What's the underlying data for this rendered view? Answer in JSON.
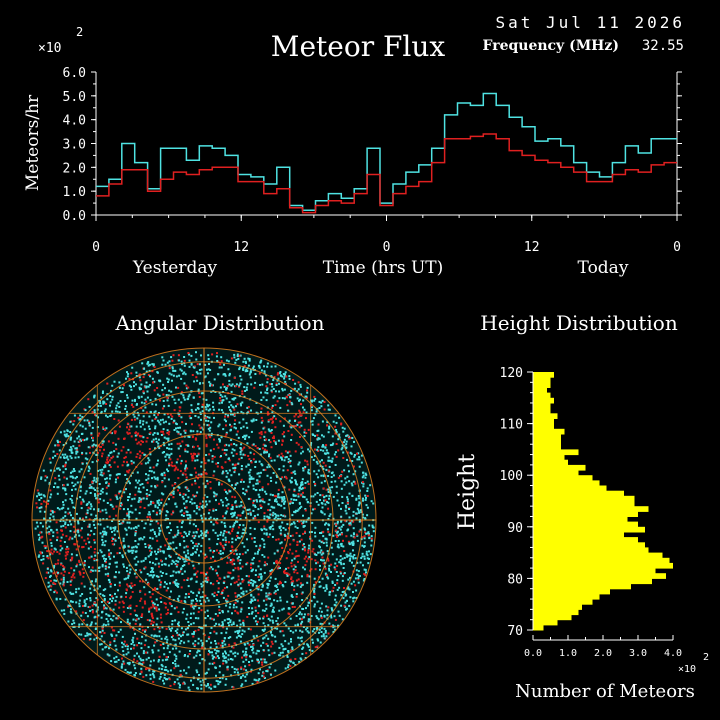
{
  "header": {
    "title": "Meteor Flux",
    "date": "Sat Jul 11 2026",
    "frequency_label": "Frequency (MHz)",
    "frequency_value": "32.55"
  },
  "colors": {
    "background": "#000000",
    "axis": "#ffffff",
    "series_a": "#4fe3e3",
    "series_b": "#e02020",
    "histogram": "#ffff00",
    "grid": "#e08020"
  },
  "chart_data": [
    {
      "type": "line",
      "title": "Meteor Flux",
      "ylabel": "Meteors/hr",
      "xlabel": "Time (hrs UT)",
      "y_multiplier": "×10",
      "y_multiplier_exp": "2",
      "ylim": [
        0,
        6
      ],
      "yticks": [
        "0.0",
        "1.0",
        "2.0",
        "3.0",
        "4.0",
        "5.0",
        "6.0"
      ],
      "xticks": [
        "0",
        "12",
        "0",
        "12",
        "0"
      ],
      "x_region_labels": [
        "Yesterday",
        "Today"
      ],
      "step": true,
      "series": [
        {
          "values": [
            1.2,
            1.5,
            3.0,
            2.2,
            1.1,
            2.8,
            2.8,
            2.3,
            2.9,
            2.8,
            2.5,
            1.7,
            1.6,
            1.3,
            2.0,
            0.4,
            0.2,
            0.6,
            0.9,
            0.7,
            1.1,
            2.8,
            0.5,
            1.3,
            1.8,
            2.1,
            2.8,
            4.2,
            4.7,
            4.6,
            5.1,
            4.6,
            4.1,
            3.7,
            3.1,
            3.2,
            2.9,
            2.2,
            1.8,
            1.6,
            2.2,
            2.9,
            2.6,
            3.2,
            3.2
          ]
        },
        {
          "values": [
            0.8,
            1.3,
            1.9,
            1.9,
            1.0,
            1.5,
            1.8,
            1.7,
            1.9,
            2.0,
            2.0,
            1.4,
            1.4,
            0.9,
            1.1,
            0.3,
            0.1,
            0.4,
            0.6,
            0.5,
            0.9,
            1.7,
            0.4,
            0.9,
            1.2,
            1.4,
            2.2,
            3.2,
            3.2,
            3.3,
            3.4,
            3.2,
            2.7,
            2.5,
            2.3,
            2.2,
            2.0,
            1.8,
            1.4,
            1.4,
            1.7,
            1.9,
            1.8,
            2.1,
            2.2
          ]
        }
      ]
    },
    {
      "type": "scatter",
      "title": "Angular Distribution",
      "grid": true
    },
    {
      "type": "bar",
      "orientation": "horizontal",
      "title": "Height Distribution",
      "ylabel": "Height",
      "xlabel": "Number of Meteors",
      "x_multiplier": "×10",
      "x_multiplier_exp": "2",
      "xlim": [
        0,
        4
      ],
      "xticks": [
        "0.0",
        "1.0",
        "2.0",
        "3.0",
        "4.0"
      ],
      "ylim": [
        70,
        120
      ],
      "yticks": [
        "70",
        "80",
        "90",
        "100",
        "110",
        "120"
      ],
      "heights": [
        70,
        71,
        72,
        73,
        74,
        75,
        76,
        77,
        78,
        79,
        80,
        81,
        82,
        83,
        84,
        85,
        86,
        87,
        88,
        89,
        90,
        91,
        92,
        93,
        94,
        95,
        96,
        97,
        98,
        99,
        100,
        101,
        102,
        103,
        104,
        105,
        106,
        107,
        108,
        109,
        110,
        111,
        112,
        113,
        114,
        115,
        116,
        117,
        118,
        119
      ],
      "values": [
        0.3,
        0.7,
        1.1,
        1.3,
        1.4,
        1.7,
        1.9,
        2.2,
        2.8,
        3.4,
        3.8,
        3.5,
        4.0,
        3.9,
        3.7,
        3.3,
        3.2,
        3.0,
        2.6,
        3.2,
        3.0,
        2.7,
        3.0,
        3.3,
        2.9,
        2.9,
        2.6,
        2.1,
        1.9,
        1.7,
        1.3,
        1.5,
        1.0,
        0.9,
        1.3,
        0.8,
        0.8,
        0.8,
        0.9,
        0.6,
        0.6,
        0.7,
        0.5,
        0.5,
        0.6,
        0.5,
        0.4,
        0.5,
        0.5,
        0.6
      ]
    }
  ]
}
